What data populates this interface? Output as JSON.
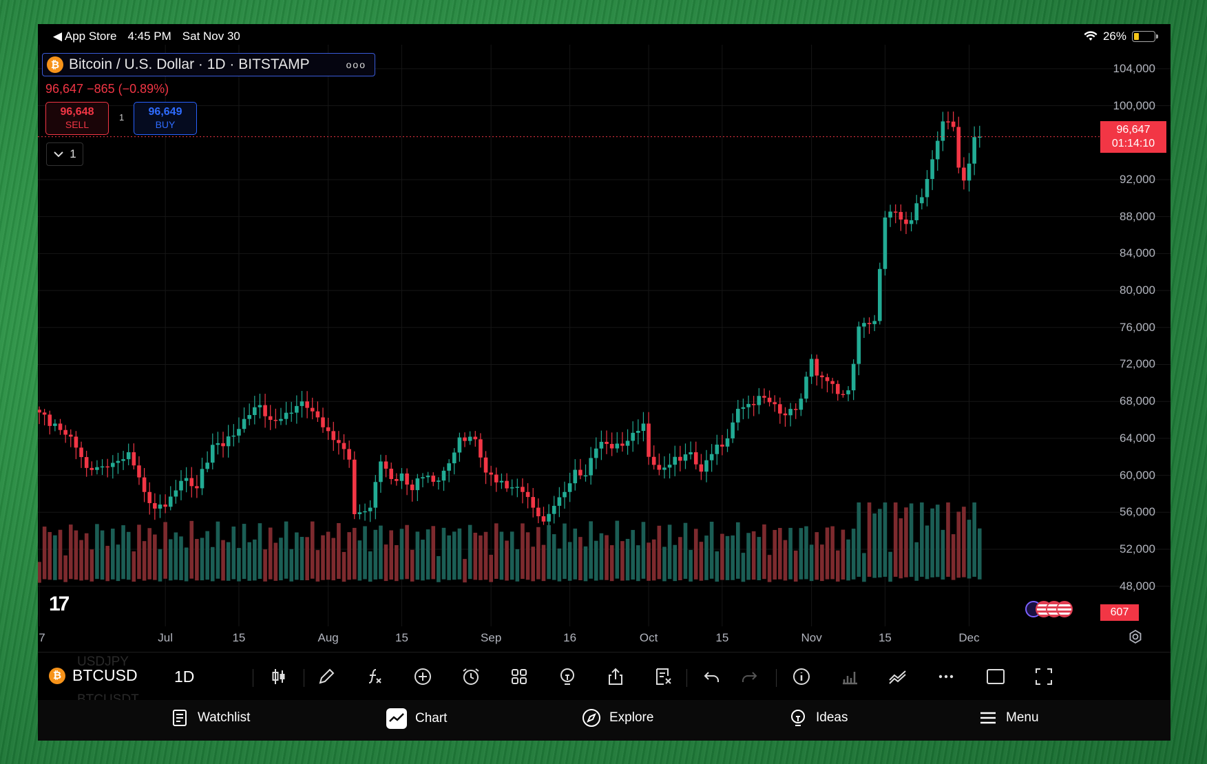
{
  "status_bar": {
    "back_app": "◀ App Store",
    "time": "4:45 PM",
    "date": "Sat Nov 30",
    "battery": "26%",
    "battery_level": 0.26
  },
  "symbol": {
    "title": "Bitcoin / U.S. Dollar · 1D · BITSTAMP",
    "badge": "₿",
    "menu": "ooo"
  },
  "quote": {
    "last": "96,647",
    "change": "−865",
    "change_pct": "(−0.89%)"
  },
  "trade": {
    "sell_price": "96,648",
    "sell_label": "SELL",
    "buy_price": "96,649",
    "buy_label": "BUY",
    "spread": "1"
  },
  "collapse": {
    "label": "1"
  },
  "colors": {
    "up": "#22ab94",
    "down": "#f23645",
    "volume_up": "#1b5e55",
    "volume_down": "#7d2a2e",
    "grid": "#161616"
  },
  "chart_data": {
    "type": "candlestick",
    "symbol": "BTCUSD",
    "interval": "1D",
    "y_ticks": [
      "104,000",
      "100,000",
      "92,000",
      "88,000",
      "84,000",
      "80,000",
      "76,000",
      "72,000",
      "68,000",
      "64,000",
      "60,000",
      "56,000",
      "52,000",
      "48,000"
    ],
    "ylim": [
      45500,
      106000
    ],
    "x_ticks": [
      {
        "label": "7",
        "day": 0
      },
      {
        "label": "Jul",
        "day": 24
      },
      {
        "label": "15",
        "day": 38
      },
      {
        "label": "Aug",
        "day": 55
      },
      {
        "label": "15",
        "day": 69
      },
      {
        "label": "Sep",
        "day": 86
      },
      {
        "label": "16",
        "day": 101
      },
      {
        "label": "Oct",
        "day": 116
      },
      {
        "label": "15",
        "day": 130
      },
      {
        "label": "Nov",
        "day": 147
      },
      {
        "label": "15",
        "day": 161
      },
      {
        "label": "Dec",
        "day": 177
      }
    ],
    "last_price": 96647,
    "last_price_label": "96,647",
    "countdown": "01:14:10",
    "last_volume_label": "607",
    "close_anchors": [
      [
        0,
        66800
      ],
      [
        3,
        65600
      ],
      [
        5,
        64400
      ],
      [
        7,
        63000
      ],
      [
        9,
        60800
      ],
      [
        13,
        60900
      ],
      [
        17,
        62500
      ],
      [
        20,
        58200
      ],
      [
        22,
        56400
      ],
      [
        25,
        57700
      ],
      [
        27,
        59400
      ],
      [
        30,
        58600
      ],
      [
        33,
        63300
      ],
      [
        37,
        64300
      ],
      [
        39,
        66100
      ],
      [
        42,
        67600
      ],
      [
        44,
        66000
      ],
      [
        46,
        66100
      ],
      [
        49,
        67500
      ],
      [
        51,
        67300
      ],
      [
        54,
        65200
      ],
      [
        57,
        63500
      ],
      [
        59,
        61700
      ],
      [
        60,
        55800
      ],
      [
        61,
        56000
      ],
      [
        63,
        56500
      ],
      [
        65,
        61500
      ],
      [
        67,
        59600
      ],
      [
        69,
        60200
      ],
      [
        71,
        58400
      ],
      [
        73,
        59800
      ],
      [
        75,
        59300
      ],
      [
        77,
        60500
      ],
      [
        80,
        64100
      ],
      [
        83,
        63900
      ],
      [
        85,
        60300
      ],
      [
        88,
        59400
      ],
      [
        90,
        58700
      ],
      [
        92,
        58200
      ],
      [
        94,
        56500
      ],
      [
        96,
        55000
      ],
      [
        98,
        56700
      ],
      [
        100,
        58200
      ],
      [
        102,
        60600
      ],
      [
        104,
        60000
      ],
      [
        106,
        62900
      ],
      [
        108,
        63400
      ],
      [
        111,
        63200
      ],
      [
        113,
        64600
      ],
      [
        115,
        65600
      ],
      [
        116,
        62000
      ],
      [
        118,
        60600
      ],
      [
        121,
        62000
      ],
      [
        124,
        62500
      ],
      [
        126,
        60400
      ],
      [
        128,
        62300
      ],
      [
        131,
        64000
      ],
      [
        133,
        67200
      ],
      [
        136,
        67600
      ],
      [
        138,
        68400
      ],
      [
        140,
        67700
      ],
      [
        142,
        66500
      ],
      [
        145,
        68300
      ],
      [
        147,
        72600
      ],
      [
        148,
        70800
      ],
      [
        150,
        70200
      ],
      [
        152,
        68800
      ],
      [
        154,
        69200
      ],
      [
        156,
        76100
      ],
      [
        159,
        76700
      ],
      [
        161,
        87900
      ],
      [
        163,
        88500
      ],
      [
        165,
        87200
      ],
      [
        168,
        90100
      ],
      [
        170,
        94200
      ],
      [
        172,
        98300
      ],
      [
        174,
        97700
      ],
      [
        175,
        93300
      ],
      [
        176,
        91900
      ],
      [
        178,
        96600
      ],
      [
        179,
        96647
      ]
    ],
    "volume_scale": [
      0,
      1
    ]
  },
  "toolbar": {
    "symbol": "BTCUSD",
    "interval": "1D",
    "ghost_above": "USDJPY",
    "ghost_below": "BTCUSDT"
  },
  "tabs": [
    {
      "label": "Watchlist",
      "icon": "watchlist-icon"
    },
    {
      "label": "Chart",
      "icon": "chart-icon"
    },
    {
      "label": "Explore",
      "icon": "compass-icon"
    },
    {
      "label": "Ideas",
      "icon": "lightbulb-icon"
    },
    {
      "label": "Menu",
      "icon": "hamburger-icon"
    }
  ]
}
